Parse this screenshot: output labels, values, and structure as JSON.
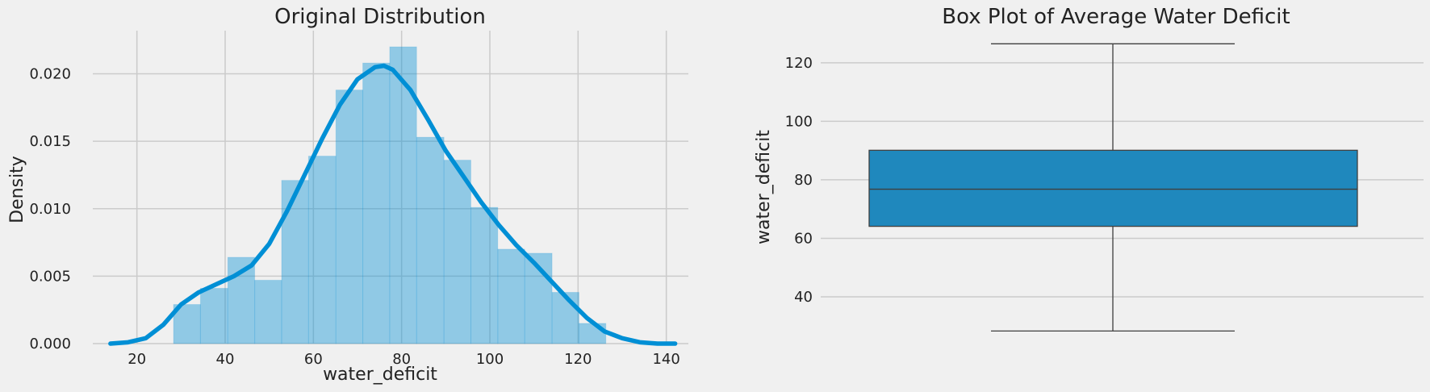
{
  "colors": {
    "background": "#f0f0f0",
    "grid": "#cbcbcb",
    "primary": "#008fd5",
    "hist_fill": "#008fd5",
    "box_fill": "#1f88bd",
    "box_edge": "#3f3f3f",
    "text": "#222222"
  },
  "chart_data": [
    {
      "type": "histogram",
      "title": "Original Distribution",
      "xlabel": "water_deficit",
      "ylabel": "Density",
      "xlim": [
        10,
        145
      ],
      "ylim": [
        0,
        0.0232
      ],
      "grid": true,
      "x_ticks": [
        20,
        40,
        60,
        80,
        100,
        120,
        140
      ],
      "y_ticks": [
        0.0,
        0.005,
        0.01,
        0.015,
        0.02
      ],
      "y_tick_labels": [
        "0.000",
        "0.005",
        "0.010",
        "0.015",
        "0.020"
      ],
      "bins": [
        {
          "x0": 28.3,
          "x1": 34.4,
          "density": 0.0029
        },
        {
          "x0": 34.4,
          "x1": 40.6,
          "density": 0.0041
        },
        {
          "x0": 40.6,
          "x1": 46.7,
          "density": 0.0064
        },
        {
          "x0": 46.7,
          "x1": 52.8,
          "density": 0.0047
        },
        {
          "x0": 52.8,
          "x1": 58.9,
          "density": 0.0121
        },
        {
          "x0": 58.9,
          "x1": 65.1,
          "density": 0.0139
        },
        {
          "x0": 65.1,
          "x1": 71.2,
          "density": 0.0188
        },
        {
          "x0": 71.2,
          "x1": 77.3,
          "density": 0.0208
        },
        {
          "x0": 77.3,
          "x1": 83.4,
          "density": 0.022
        },
        {
          "x0": 83.4,
          "x1": 89.6,
          "density": 0.0153
        },
        {
          "x0": 89.6,
          "x1": 95.7,
          "density": 0.0136
        },
        {
          "x0": 95.7,
          "x1": 101.8,
          "density": 0.0101
        },
        {
          "x0": 101.8,
          "x1": 107.9,
          "density": 0.007
        },
        {
          "x0": 107.9,
          "x1": 114.1,
          "density": 0.0067
        },
        {
          "x0": 114.1,
          "x1": 120.2,
          "density": 0.0038
        },
        {
          "x0": 120.2,
          "x1": 126.3,
          "density": 0.0015
        }
      ],
      "kde": {
        "x": [
          14,
          18,
          22,
          26,
          30,
          34,
          38,
          42,
          46,
          50,
          54,
          58,
          62,
          66,
          70,
          74,
          76,
          78,
          82,
          86,
          90,
          94,
          98,
          102,
          106,
          110,
          114,
          118,
          122,
          126,
          130,
          134,
          138,
          142
        ],
        "y": [
          0.0,
          0.0001,
          0.0004,
          0.0014,
          0.0029,
          0.0038,
          0.0044,
          0.005,
          0.0058,
          0.0074,
          0.0098,
          0.0125,
          0.0152,
          0.0177,
          0.0196,
          0.0205,
          0.0206,
          0.0203,
          0.0188,
          0.0166,
          0.0143,
          0.0124,
          0.0105,
          0.0088,
          0.0073,
          0.006,
          0.0046,
          0.0032,
          0.0019,
          0.0009,
          0.0004,
          0.0001,
          0.0,
          0.0
        ]
      }
    },
    {
      "type": "box",
      "title": "Box Plot of Average Water Deficit",
      "xlabel": "",
      "ylabel": "water_deficit",
      "ylim": [
        24,
        131
      ],
      "grid": true,
      "y_ticks": [
        40,
        60,
        80,
        100,
        120
      ],
      "box": {
        "whisker_low": 28.3,
        "q1": 64.1,
        "median": 76.8,
        "q3": 90.1,
        "whisker_high": 126.5
      }
    }
  ]
}
